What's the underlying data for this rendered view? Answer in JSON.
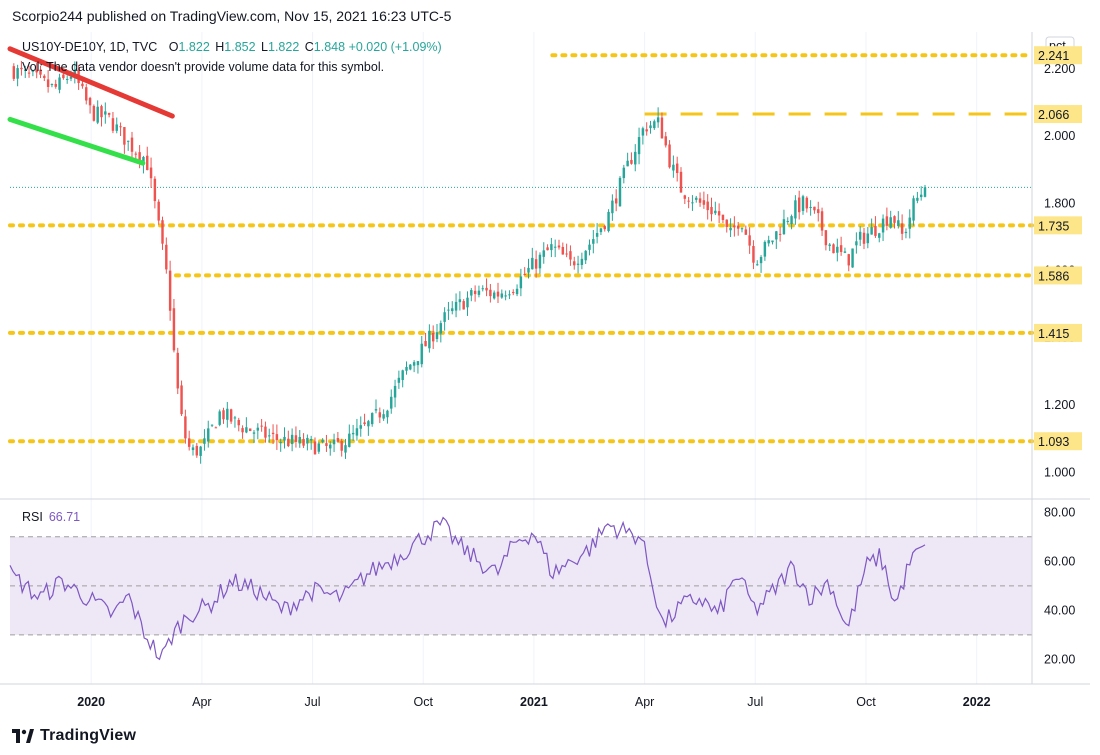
{
  "header": {
    "publisher_line": "Scorpio244 published on TradingView.com, Nov 15, 2021 16:23 UTC-5"
  },
  "legend": {
    "symbol_line": "US10Y-DE10Y, 1D, TVC",
    "open_label": "O",
    "open": "1.822",
    "high_label": "H",
    "high": "1.852",
    "low_label": "L",
    "low": "1.822",
    "close_label": "C",
    "close": "1.848",
    "change": "+0.020 (+1.09%)",
    "volume_note": "Vol: The data vendor doesn't provide volume data for this symbol."
  },
  "rsi_legend": {
    "label": "RSI",
    "value": "66.71"
  },
  "footer": {
    "logo_text": "TradingView"
  },
  "colors": {
    "up": "#26a69a",
    "down": "#ef5350",
    "level": "#f5c518",
    "rsi_line": "#7e57c2",
    "rsi_band": "#ede7f6",
    "trend_upper": "#e53935",
    "trend_lower": "#34e04a"
  },
  "chart_data": [
    {
      "type": "candlestick",
      "title": "US10Y-DE10Y, 1D, TVC",
      "y_unit": "pct",
      "ylim": [
        0.93,
        2.31
      ],
      "yticks": [
        "1.000",
        "1.200",
        "1.400",
        "1.600",
        "1.800",
        "2.000",
        "2.200"
      ],
      "xticks": [
        "2020",
        "Apr",
        "Jul",
        "Oct",
        "2021",
        "Apr",
        "Jul",
        "Oct",
        "2022"
      ],
      "xtick_pos": [
        2,
        5,
        8,
        11,
        14,
        17,
        20,
        23,
        26
      ],
      "xlim": [
        -0.2,
        27.5
      ],
      "horizontal_levels": [
        {
          "value": 2.241,
          "label": "2.241",
          "style": "dotted",
          "from": 14.5
        },
        {
          "value": 2.066,
          "label": "2.066",
          "style": "dashed",
          "from": 17
        },
        {
          "value": 1.735,
          "label": "1.735",
          "style": "dotted",
          "from": -0.2
        },
        {
          "value": 1.586,
          "label": "1.586",
          "style": "dotted",
          "from": 4.3
        },
        {
          "value": 1.415,
          "label": "1.415",
          "style": "dotted",
          "from": -0.2
        },
        {
          "value": 1.093,
          "label": "1.093",
          "style": "dotted",
          "from": -0.2
        }
      ],
      "last_price": 1.848,
      "trendlines": [
        {
          "name": "resistance",
          "x": [
            -0.2,
            4.2
          ],
          "y": [
            2.26,
            2.06
          ]
        },
        {
          "name": "support",
          "x": [
            -0.2,
            3.4
          ],
          "y": [
            2.05,
            1.92
          ]
        }
      ],
      "close_anchors": {
        "x": [
          -0.2,
          0.5,
          1,
          1.5,
          2,
          2.5,
          3,
          3.5,
          3.8,
          4.1,
          4.3,
          4.5,
          4.7,
          5.0,
          5.5,
          6.0,
          6.5,
          7.0,
          7.5,
          8.0,
          8.5,
          9.0,
          9.5,
          10.0,
          10.5,
          11.0,
          11.5,
          12.0,
          12.5,
          13.0,
          13.5,
          14.0,
          14.5,
          15.0,
          15.5,
          16.0,
          16.5,
          17.0,
          17.4,
          17.7,
          18.0,
          18.5,
          19.0,
          19.3,
          19.6,
          20.0,
          20.5,
          21.0,
          21.3,
          21.7,
          22.0,
          22.5,
          22.8,
          23.3,
          23.7,
          24.0,
          24.3,
          24.6
        ],
        "y": [
          2.2,
          2.17,
          2.14,
          2.19,
          2.07,
          2.05,
          1.98,
          1.93,
          1.75,
          1.55,
          1.28,
          1.12,
          1.06,
          1.07,
          1.18,
          1.14,
          1.12,
          1.1,
          1.09,
          1.08,
          1.07,
          1.1,
          1.14,
          1.2,
          1.3,
          1.37,
          1.45,
          1.5,
          1.54,
          1.53,
          1.56,
          1.62,
          1.67,
          1.62,
          1.68,
          1.76,
          1.9,
          2.03,
          2.04,
          1.92,
          1.84,
          1.8,
          1.77,
          1.7,
          1.76,
          1.63,
          1.7,
          1.78,
          1.8,
          1.75,
          1.68,
          1.63,
          1.69,
          1.73,
          1.77,
          1.7,
          1.8,
          1.848
        ]
      }
    },
    {
      "type": "line",
      "title": "RSI",
      "ylim": [
        10,
        85
      ],
      "yticks": [
        "20.00",
        "40.00",
        "60.00",
        "80.00"
      ],
      "band": [
        30,
        70
      ],
      "midline": 50,
      "anchors": {
        "x": [
          -0.2,
          0.6,
          1.2,
          2.0,
          2.6,
          3.0,
          3.4,
          3.9,
          4.2,
          4.6,
          5.2,
          5.8,
          6.5,
          7.2,
          8.0,
          8.8,
          9.5,
          10.3,
          11.0,
          11.5,
          12.0,
          12.5,
          13.0,
          13.5,
          14.0,
          14.5,
          15.0,
          15.5,
          16.0,
          16.5,
          16.9,
          17.2,
          17.5,
          18.0,
          18.5,
          19.0,
          19.5,
          20.0,
          20.5,
          21.0,
          21.5,
          22.0,
          22.5,
          23.0,
          23.4,
          23.8,
          24.2,
          24.6
        ],
        "y": [
          55,
          45,
          52,
          44,
          38,
          46,
          32,
          20,
          30,
          38,
          42,
          52,
          48,
          40,
          48,
          45,
          55,
          62,
          70,
          75,
          66,
          60,
          55,
          68,
          72,
          55,
          60,
          65,
          75,
          72,
          70,
          52,
          34,
          42,
          45,
          38,
          55,
          40,
          48,
          58,
          45,
          52,
          32,
          58,
          62,
          42,
          60,
          66.71
        ]
      }
    }
  ]
}
